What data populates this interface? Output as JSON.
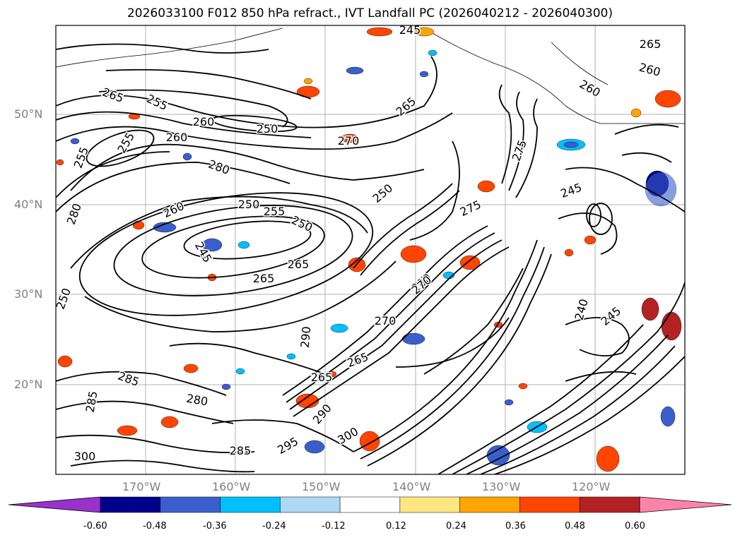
{
  "title": "2026033100 F012 850 hPa refract., IVT Landfall PC (2026040212 - 2026040300)",
  "lat_labels": [
    {
      "text": "50°N"
    },
    {
      "text": "40°N"
    },
    {
      "text": "30°N"
    },
    {
      "text": "20°N"
    }
  ],
  "lon_labels": [
    {
      "text": "170°W"
    },
    {
      "text": "160°W"
    },
    {
      "text": "150°W"
    },
    {
      "text": "140°W"
    },
    {
      "text": "130°W"
    },
    {
      "text": "120°W"
    }
  ],
  "contour_labels": [
    "265",
    "255",
    "260",
    "250",
    "270",
    "265",
    "255",
    "250",
    "260",
    "280",
    "280",
    "260",
    "255",
    "250",
    "245",
    "265",
    "265",
    "250",
    "275",
    "275",
    "245",
    "280",
    "270",
    "265",
    "285",
    "290",
    "295",
    "300",
    "300",
    "285",
    "290",
    "280",
    "285",
    "240",
    "245",
    "260",
    "265",
    "260",
    "245",
    "270",
    "265",
    "250",
    "255"
  ],
  "colorbar": {
    "levels": [
      "-0.60",
      "-0.48",
      "-0.36",
      "-0.24",
      "-0.12",
      "0.12",
      "0.24",
      "0.36",
      "0.48",
      "0.60"
    ],
    "colors": [
      "#9932CC",
      "#00008B",
      "#3A5FCD",
      "#00BFFF",
      "#ADD8F6",
      "#FFFFFF",
      "#FFE680",
      "#FFA500",
      "#FF4500",
      "#B22222",
      "#FF82AB"
    ]
  }
}
